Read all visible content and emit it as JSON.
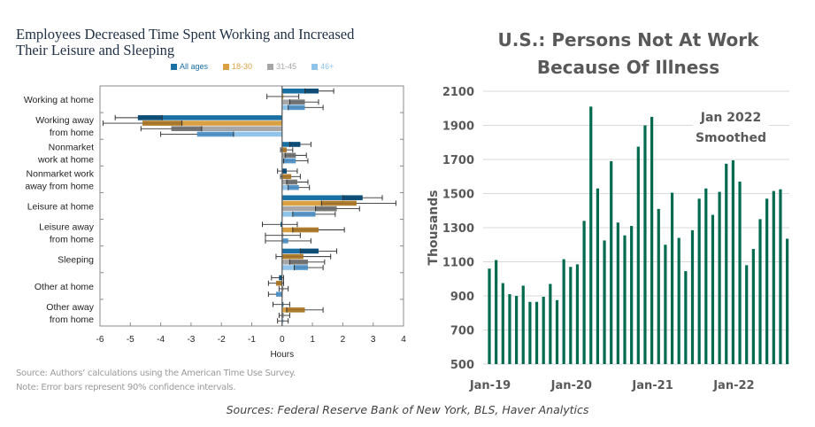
{
  "left_chart_title": [
    "Employees Decreased Time Spent Working and Increased",
    "Their Leisure and Sleeping"
  ],
  "left_notes": {
    "source": "Source: Authors’ calculations using the American Time Use Survey.",
    "note": "Note: Error bars represent 90% confidence intervals."
  },
  "right_chart_title": [
    "U.S.: Persons Not At Work",
    "Because Of Illness"
  ],
  "annotation": [
    "Jan 2022",
    "Smoothed"
  ],
  "footer": "Sources: Federal Reserve Bank of New York, BLS, Haver Analytics",
  "chart_data": [
    {
      "type": "bar",
      "orientation": "horizontal",
      "title": "Employees Decreased Time Spent Working and Increased Their Leisure and Sleeping",
      "xlabel": "Hours",
      "ylabel": "",
      "xlim": [
        -6,
        4
      ],
      "xticks": [
        -6,
        -5,
        -4,
        -3,
        -2,
        -1,
        0,
        1,
        2,
        3,
        4
      ],
      "legend_position": "top",
      "grid": false,
      "categories": [
        [
          "Working at home"
        ],
        [
          "Working away",
          "from home"
        ],
        [
          "Nonmarket",
          "work at home"
        ],
        [
          "Nonmarket work",
          "away from home"
        ],
        [
          "Leisure at home"
        ],
        [
          "Leisure away",
          "from home"
        ],
        [
          "Sleeping"
        ],
        [
          "Other at home"
        ],
        [
          "Other away",
          "from home"
        ]
      ],
      "series": [
        {
          "name": "All ages",
          "color": "#1a6fa3",
          "dark": "#0d4a73",
          "values": [
            1.2,
            -4.75,
            0.6,
            0.15,
            2.65,
            -0.05,
            1.2,
            -0.1,
            0.0
          ],
          "ci_low": [
            0.75,
            -5.5,
            0.25,
            -0.15,
            2.0,
            -0.65,
            0.6,
            -0.35,
            -0.3
          ],
          "ci_high": [
            1.7,
            -3.95,
            0.95,
            0.5,
            3.3,
            0.5,
            1.8,
            0.05,
            0.25
          ]
        },
        {
          "name": "18-30",
          "color": "#d9a043",
          "dark": "#a8772a",
          "values": [
            0.0,
            -4.6,
            0.15,
            0.3,
            2.45,
            1.2,
            0.7,
            -0.2,
            0.75
          ],
          "ci_low": [
            -0.5,
            -5.9,
            -0.05,
            -0.05,
            1.3,
            0.35,
            -0.2,
            -0.45,
            0.15
          ],
          "ci_high": [
            0.55,
            -3.3,
            0.35,
            0.6,
            3.75,
            2.05,
            1.6,
            0.05,
            1.35
          ]
        },
        {
          "name": "31-45",
          "color": "#a6a6a6",
          "dark": "#6e6e6e",
          "values": [
            0.75,
            -3.65,
            0.45,
            0.5,
            1.8,
            0.0,
            0.85,
            0.0,
            0.05
          ],
          "ci_low": [
            0.25,
            -4.65,
            0.1,
            0.15,
            1.1,
            -0.55,
            0.25,
            -0.1,
            -0.1
          ],
          "ci_high": [
            1.2,
            -2.65,
            0.8,
            0.85,
            2.55,
            0.6,
            1.4,
            0.2,
            0.25
          ]
        },
        {
          "name": "46+",
          "color": "#8fc3ea",
          "dark": "#4d8fc4",
          "values": [
            0.75,
            -2.8,
            0.45,
            0.55,
            1.1,
            0.2,
            0.85,
            -0.2,
            0.0
          ],
          "ci_low": [
            0.2,
            -4.0,
            0.05,
            0.2,
            0.35,
            -0.55,
            0.4,
            -0.45,
            -0.15
          ],
          "ci_high": [
            1.35,
            -1.6,
            0.85,
            0.9,
            1.75,
            0.95,
            1.35,
            0.0,
            0.2
          ]
        }
      ]
    },
    {
      "type": "bar",
      "title": "U.S.: Persons Not At Work Because Of Illness",
      "xlabel": "",
      "ylabel": "Thousands",
      "ylim": [
        500,
        2100
      ],
      "yticks": [
        500,
        700,
        900,
        1100,
        1300,
        1500,
        1700,
        1900,
        2100
      ],
      "xtick_labels": [
        "Jan-19",
        "Jan-20",
        "Jan-21",
        "Jan-22"
      ],
      "xtick_indices": [
        0,
        12,
        24,
        36
      ],
      "grid": true,
      "color": "#006a4e",
      "start_month": "Jan-19",
      "end_month": "Sep-22",
      "values": [
        1060,
        1110,
        975,
        910,
        900,
        960,
        865,
        865,
        895,
        970,
        875,
        1115,
        1070,
        1085,
        1340,
        2010,
        1530,
        1225,
        1690,
        1330,
        1255,
        1310,
        1775,
        1900,
        1950,
        1410,
        1200,
        1505,
        1240,
        1045,
        1285,
        1470,
        1530,
        1375,
        1510,
        1675,
        1695,
        1570,
        1080,
        1175,
        1350,
        1470,
        1515,
        1525,
        1235
      ]
    }
  ]
}
